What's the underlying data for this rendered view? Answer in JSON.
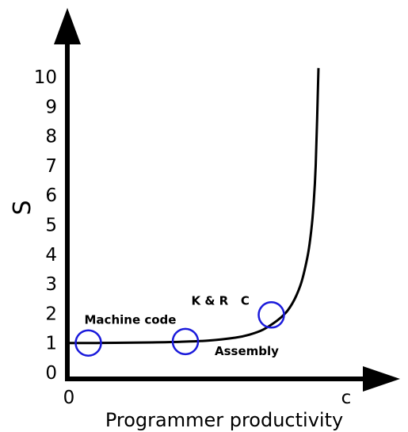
{
  "chart_data": {
    "type": "line",
    "title": "",
    "xlabel": "Programmer productivity",
    "ylabel": "S",
    "x_tick_labels": [
      "0",
      "c"
    ],
    "yticks": [
      0,
      1,
      2,
      3,
      4,
      5,
      6,
      7,
      8,
      9,
      10
    ],
    "ylim": [
      0,
      11.5
    ],
    "grid": false,
    "legend": "none",
    "series": [
      {
        "x": [
          0,
          0.1,
          0.2,
          0.3,
          0.4,
          0.5,
          0.6,
          0.65,
          0.7,
          0.75,
          0.78,
          0.8,
          0.82,
          0.84,
          0.86,
          0.87,
          0.88,
          0.89,
          0.9
        ],
        "values": [
          1.0,
          1.0,
          1.01,
          1.02,
          1.04,
          1.08,
          1.18,
          1.28,
          1.45,
          1.75,
          2.0,
          2.25,
          2.6,
          3.1,
          3.9,
          4.5,
          5.4,
          7.0,
          10.3
        ]
      }
    ],
    "annotations": [
      {
        "text": "Machine code",
        "x": 0.07,
        "y": 1.0,
        "label_side": "above"
      },
      {
        "text": "Assembly",
        "x": 0.42,
        "y": 1.05,
        "label_side": "below-right"
      },
      {
        "text": "K & R   C",
        "x": 0.73,
        "y": 1.95,
        "label_side": "above-left"
      }
    ],
    "style": {
      "axis_color": "#000000",
      "curve_color": "#000000",
      "marker_color": "#1a1adb"
    }
  }
}
